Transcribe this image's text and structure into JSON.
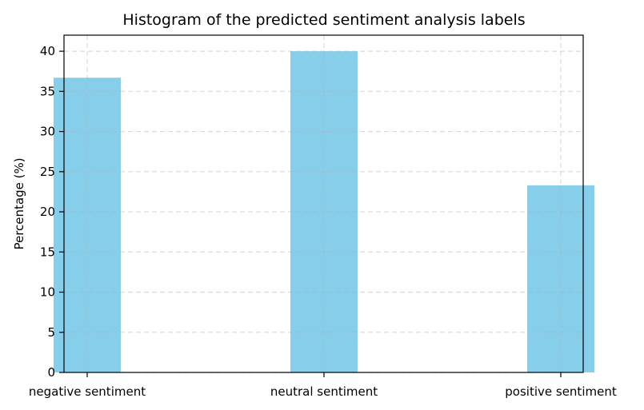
{
  "chart_data": {
    "type": "bar",
    "title": "Histogram of the predicted sentiment analysis labels",
    "xlabel": "",
    "ylabel": "Percentage (%)",
    "categories": [
      "negative sentiment",
      "neutral sentiment",
      "positive sentiment"
    ],
    "values": [
      36.7,
      40.0,
      23.3
    ],
    "ylim": [
      0,
      42
    ],
    "yticks": [
      0,
      5,
      10,
      15,
      20,
      25,
      30,
      35,
      40
    ],
    "grid": true,
    "bar_color": "#87CEEB"
  }
}
